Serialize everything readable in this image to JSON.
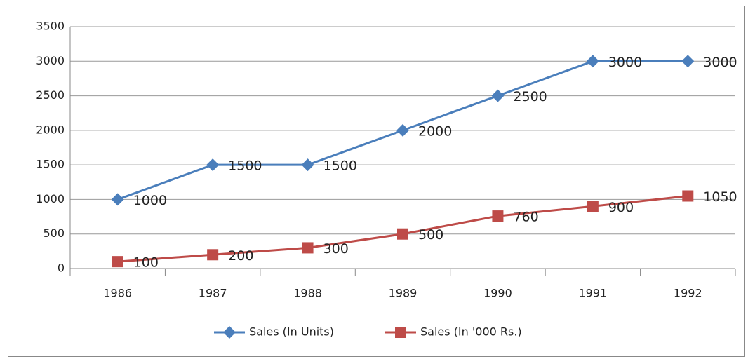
{
  "chart_data": {
    "type": "line",
    "categories": [
      "1986",
      "1987",
      "1988",
      "1989",
      "1990",
      "1991",
      "1992"
    ],
    "series": [
      {
        "name": "Sales (In Units)",
        "color": "#4a7ebb",
        "values": [
          1000,
          1500,
          1500,
          2000,
          2500,
          3000,
          3000
        ]
      },
      {
        "name": "Sales (In '000 Rs.)",
        "color": "#be4b48",
        "values": [
          100,
          200,
          300,
          500,
          760,
          900,
          1050
        ]
      }
    ],
    "ylim": [
      0,
      3500
    ],
    "yticks": [
      0,
      500,
      1000,
      1500,
      2000,
      2500,
      3000,
      3500
    ],
    "grid": true,
    "legend": "bottom"
  }
}
